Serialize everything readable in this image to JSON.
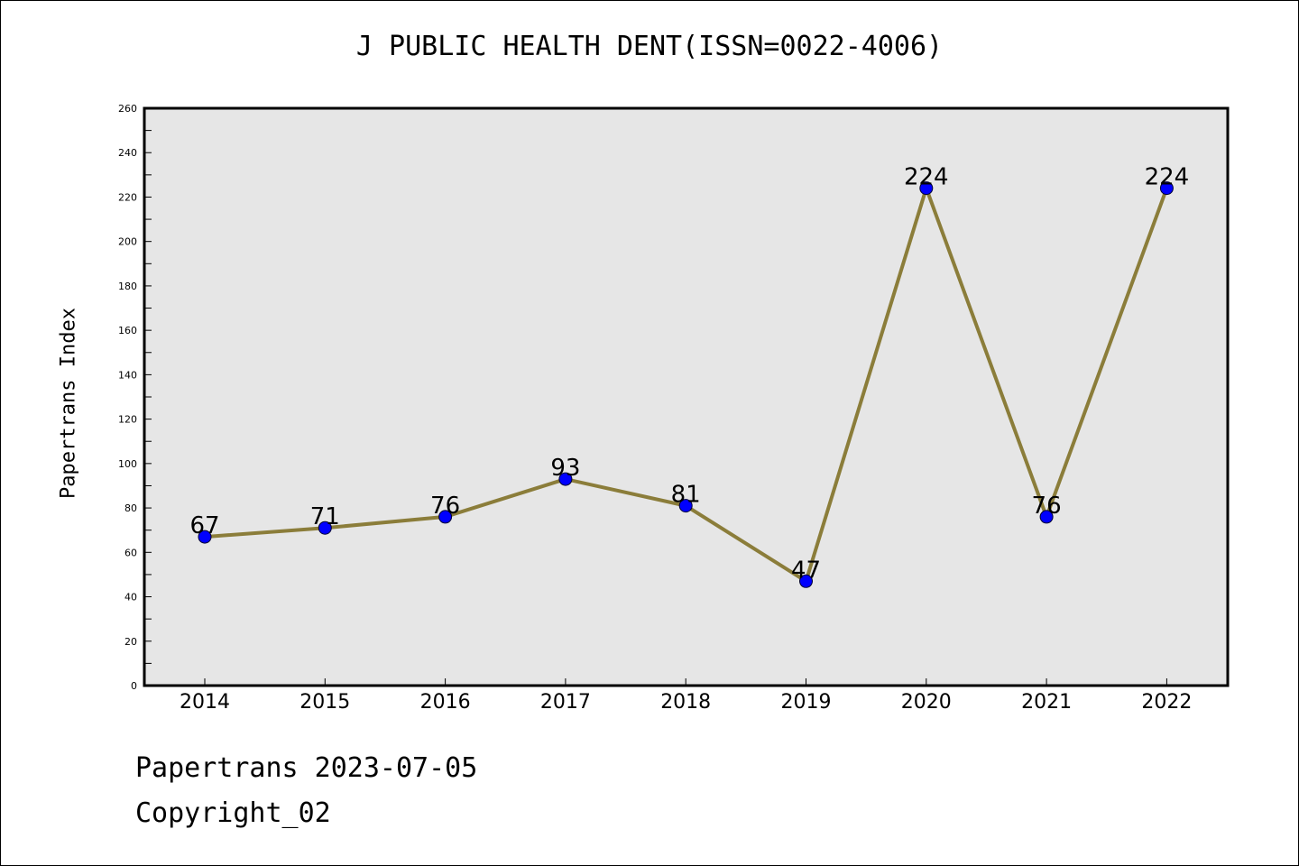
{
  "page": {
    "footer_line1": "Papertrans 2023-07-05",
    "footer_line2": "Copyright_02"
  },
  "chart_data": {
    "type": "line",
    "title": "J PUBLIC HEALTH DENT(ISSN=0022-4006)",
    "xlabel": "",
    "ylabel": "Papertrans Index",
    "categories": [
      "2014",
      "2015",
      "2016",
      "2017",
      "2018",
      "2019",
      "2020",
      "2021",
      "2022"
    ],
    "values": [
      67,
      71,
      76,
      93,
      81,
      47,
      224,
      76,
      224
    ],
    "ylim": [
      0,
      260
    ],
    "yticks": [
      0,
      20,
      40,
      60,
      80,
      100,
      120,
      140,
      160,
      180,
      200,
      220,
      240,
      260
    ],
    "grid": false,
    "data_labels": true,
    "colors": {
      "line": "#8b7d3a",
      "marker": "#0000ff",
      "plot_background": "#e6e6e6"
    }
  }
}
